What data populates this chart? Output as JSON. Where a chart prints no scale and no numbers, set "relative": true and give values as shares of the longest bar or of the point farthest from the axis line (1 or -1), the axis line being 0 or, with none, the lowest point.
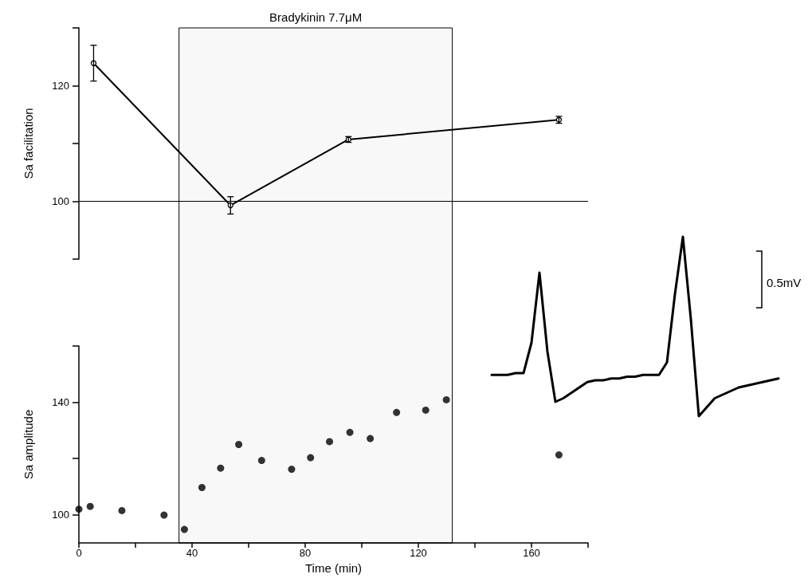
{
  "chart_data": [
    {
      "type": "line",
      "ylabel": "Sa facilitation",
      "x": [
        5.2,
        53.6,
        95.3,
        169.7
      ],
      "series": [
        {
          "color": "#000000",
          "values": [
            123.9,
            99.3,
            110.7,
            114.1
          ],
          "errors": [
            3.1,
            1.5,
            0.5,
            0.6
          ]
        }
      ],
      "marker": "circle",
      "line_style": "solid",
      "grid": false,
      "tick_labels": "y",
      "xlim": [
        0,
        180
      ],
      "ylim": [
        90,
        130
      ],
      "yticks": [
        {
          "value": 90,
          "label": null
        },
        100,
        {
          "value": 110,
          "label": null
        },
        120,
        {
          "value": 130,
          "label": null
        }
      ],
      "ref_lines": [
        {
          "axis": "y",
          "value": 100,
          "color": "#000000"
        }
      ],
      "bands": [
        {
          "axis": "x",
          "from": 35.4,
          "to": 132,
          "label": "Bradykinin 7.7μM",
          "color": "#f8f8f8"
        }
      ]
    },
    {
      "type": "scatter",
      "ylabel": "Sa amplitude",
      "xlabel": "Time (min)",
      "x": [
        0,
        4.0,
        15.2,
        30.1,
        37.3,
        43.5,
        50.1,
        56.5,
        64.6,
        75.2,
        81.9,
        88.6,
        95.8,
        103.0,
        112.3,
        122.6,
        129.9,
        169.7
      ],
      "series": [
        {
          "color": "#000000",
          "values": [
            102.0,
            103.0,
            101.5,
            99.9,
            94.8,
            109.7,
            116.6,
            125.0,
            119.3,
            116.2,
            120.3,
            126.0,
            129.3,
            127.1,
            136.4,
            137.2,
            140.9,
            121.3
          ]
        }
      ],
      "marker": "circle",
      "grid": false,
      "xlim": [
        0,
        180
      ],
      "ylim": [
        90,
        160
      ],
      "xticks": [
        0,
        {
          "value": 20,
          "label": null
        },
        40,
        {
          "value": 60,
          "label": null
        },
        80,
        {
          "value": 100,
          "label": null
        },
        120,
        {
          "value": 140,
          "label": null
        },
        160,
        {
          "value": 180,
          "label": null
        }
      ],
      "yticks": [
        100,
        {
          "value": 120,
          "label": null
        },
        140,
        {
          "value": 160,
          "label": null
        }
      ],
      "bands": [
        {
          "axis": "x",
          "from": 35.4,
          "to": 132,
          "color": "#f8f8f8"
        }
      ]
    },
    {
      "type": "line",
      "relative": true,
      "tick_labels": false,
      "marker": "none",
      "line_style": "solid",
      "grid": false,
      "categories": [
        null,
        null,
        null,
        null,
        null,
        null,
        null,
        null,
        null,
        null,
        null,
        null,
        null,
        null,
        null,
        null,
        null,
        null,
        null,
        null,
        null,
        null,
        null,
        null,
        null,
        null,
        null,
        null,
        null,
        null,
        null,
        null,
        null,
        null,
        null,
        null,
        null
      ],
      "series": [
        {
          "color": "#000000",
          "values": [
            0.23,
            0.23,
            0.23,
            0.24,
            0.24,
            0.41,
            0.8,
            0.36,
            0.08,
            0.1,
            0.13,
            0.16,
            0.19,
            0.2,
            0.2,
            0.21,
            0.21,
            0.22,
            0.22,
            0.23,
            0.23,
            0.23,
            0.3,
            0.68,
            1,
            0.54,
            0,
            0.05,
            0.1,
            0.12,
            0.14,
            0.16,
            0.17,
            0.18,
            0.19,
            0.2,
            0.21
          ]
        }
      ],
      "annotations": [
        "0.5mV"
      ]
    }
  ]
}
